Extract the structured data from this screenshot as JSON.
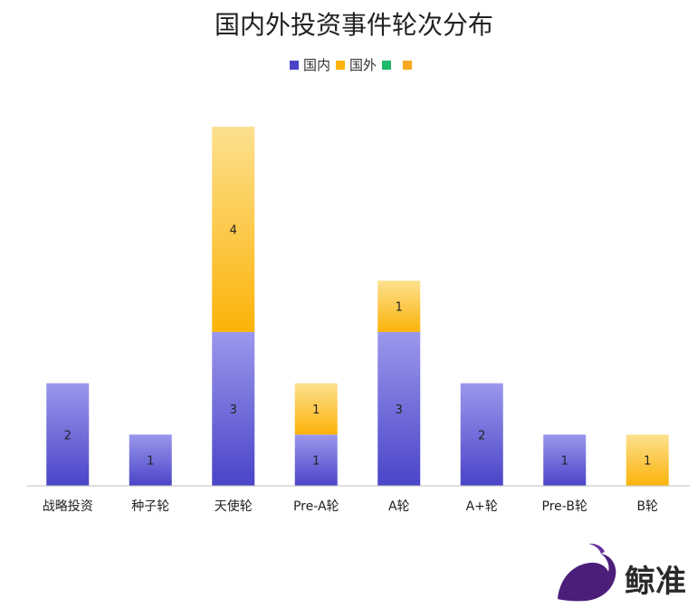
{
  "chart_data": {
    "type": "bar",
    "stacked": true,
    "title": "国内外投资事件轮次分布",
    "categories": [
      "战略投资",
      "种子轮",
      "天使轮",
      "Pre-A轮",
      "A轮",
      "A+轮",
      "Pre-B轮",
      "B轮"
    ],
    "series": [
      {
        "name": "国内",
        "values": [
          2,
          1,
          3,
          1,
          3,
          2,
          1,
          0
        ],
        "color_top": "#9a98ec",
        "color_bottom": "#4a44c8"
      },
      {
        "name": "国外",
        "values": [
          0,
          0,
          4,
          1,
          1,
          0,
          0,
          1
        ],
        "color_top": "#fde08e",
        "color_bottom": "#fbb30a"
      },
      {
        "name": "",
        "values": [
          0,
          0,
          0,
          0,
          0,
          0,
          0,
          0
        ],
        "color_top": "#1fba6a",
        "color_bottom": "#1fba6a"
      },
      {
        "name": "",
        "values": [
          0,
          0,
          0,
          0,
          0,
          0,
          0,
          0
        ],
        "color_top": "#f7a81f",
        "color_bottom": "#f7a81f"
      }
    ],
    "ylim": [
      0,
      7
    ],
    "grid": false,
    "legend_position": "top-center",
    "xlabel": "",
    "ylabel": ""
  },
  "watermark": {
    "text": "鲸准",
    "icon": "whale-logo-icon"
  }
}
